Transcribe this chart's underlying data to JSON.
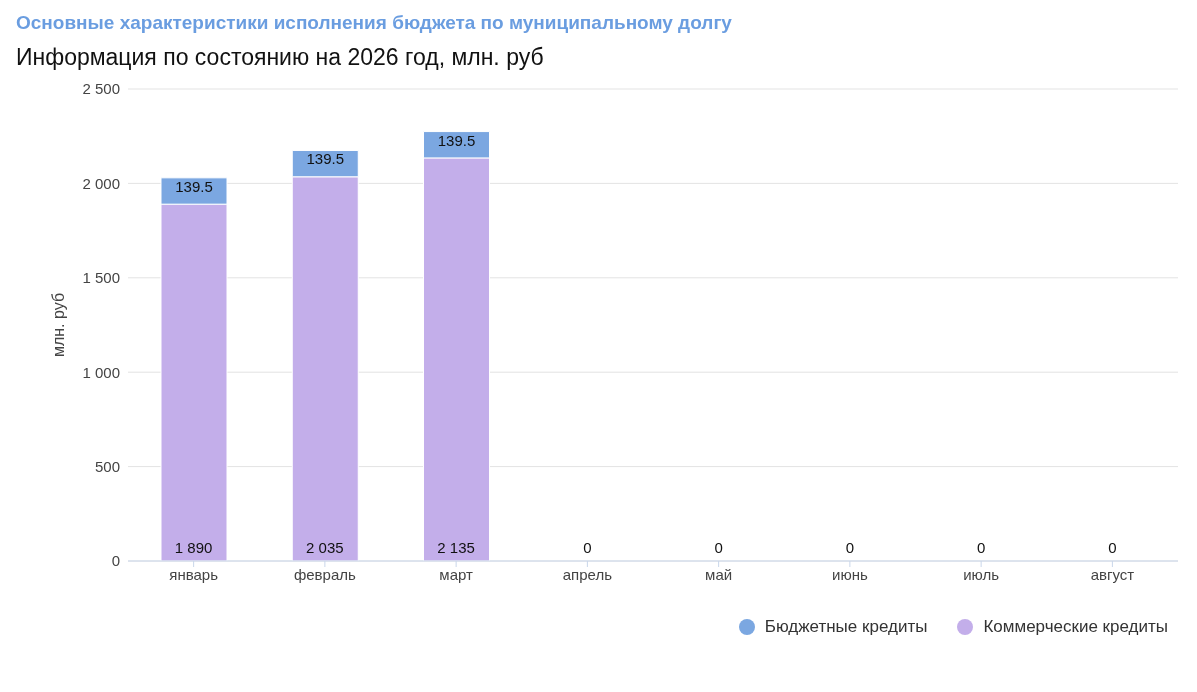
{
  "chart_data": {
    "type": "bar",
    "title": "Основные характеристики исполнения бюджета по муниципальному долгу",
    "subtitle": "Информация по состоянию на 2026 год, млн. руб",
    "ylabel": "млн. руб",
    "categories": [
      "январь",
      "февраль",
      "март",
      "апрель",
      "май",
      "июнь",
      "июль",
      "август"
    ],
    "stacked": true,
    "series": [
      {
        "name": "Коммерческие кредиты",
        "color": "#c3aeea",
        "values": [
          1890,
          2035,
          2135,
          0,
          0,
          0,
          0,
          0
        ],
        "value_labels": [
          "1 890",
          "2 035",
          "2 135",
          "0",
          "0",
          "0",
          "0",
          "0"
        ]
      },
      {
        "name": "Бюджетные кредиты",
        "color": "#7ba7e1",
        "values": [
          139.5,
          139.5,
          139.5,
          null,
          null,
          null,
          null,
          null
        ],
        "value_labels": [
          "139.5",
          "139.5",
          "139.5",
          null,
          null,
          null,
          null,
          null
        ]
      }
    ],
    "ylim": [
      0,
      2500
    ],
    "yticks": [
      0,
      {
        "value": 500,
        "label": "500"
      },
      {
        "value": 1000,
        "label": "1 000"
      },
      {
        "value": 1500,
        "label": "1 500"
      },
      {
        "value": 2000,
        "label": "2 000"
      },
      {
        "value": 2500,
        "label": "2 500"
      }
    ],
    "grid": "y",
    "legend": "bottom right"
  }
}
